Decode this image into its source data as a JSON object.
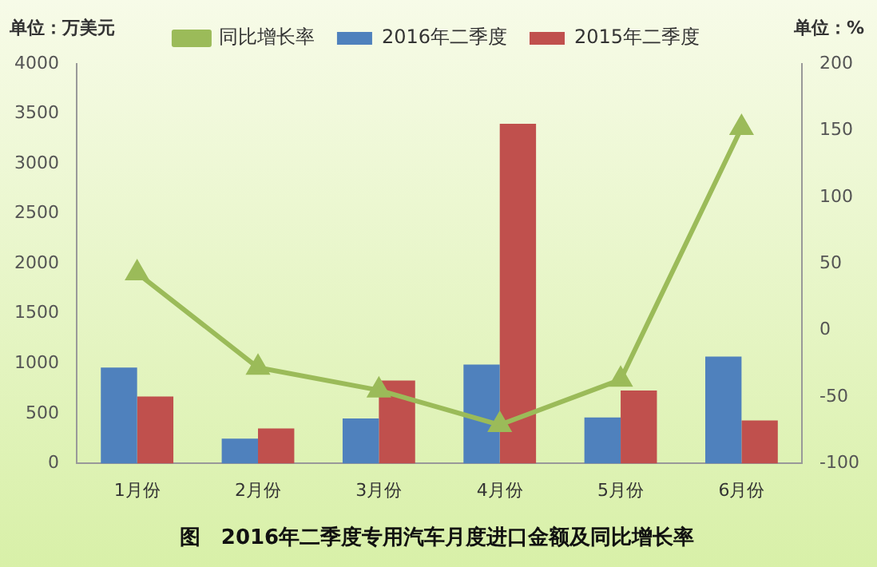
{
  "chart_data": {
    "type": "bar",
    "title": "图　2016年二季度专用汽车月度进口金额及同比增长率",
    "ylabel": "单位：万美元",
    "y2label": "单位：%",
    "categories": [
      "1月份",
      "2月份",
      "3月份",
      "4月份",
      "5月份",
      "6月份"
    ],
    "series": [
      {
        "name": "2016年二季度",
        "color": "#4f81bd",
        "values": [
          960,
          250,
          450,
          990,
          460,
          1070
        ]
      },
      {
        "name": "2015年二季度",
        "color": "#c0504d",
        "values": [
          670,
          350,
          830,
          3400,
          730,
          430
        ]
      },
      {
        "name": "同比增长率",
        "type": "line",
        "axis": "y2",
        "color": "#9bbb59",
        "marker": "triangle",
        "values": [
          43,
          -28,
          -45,
          -71,
          -37,
          152
        ]
      }
    ],
    "ylim": [
      0,
      4000
    ],
    "yticks": [
      0,
      500,
      1000,
      1500,
      2000,
      2500,
      3000,
      3500,
      4000
    ],
    "y2lim": [
      -100,
      200
    ],
    "y2ticks": [
      -100,
      -50,
      0,
      50,
      100,
      150,
      200
    ],
    "grid": false,
    "legend": "top"
  }
}
